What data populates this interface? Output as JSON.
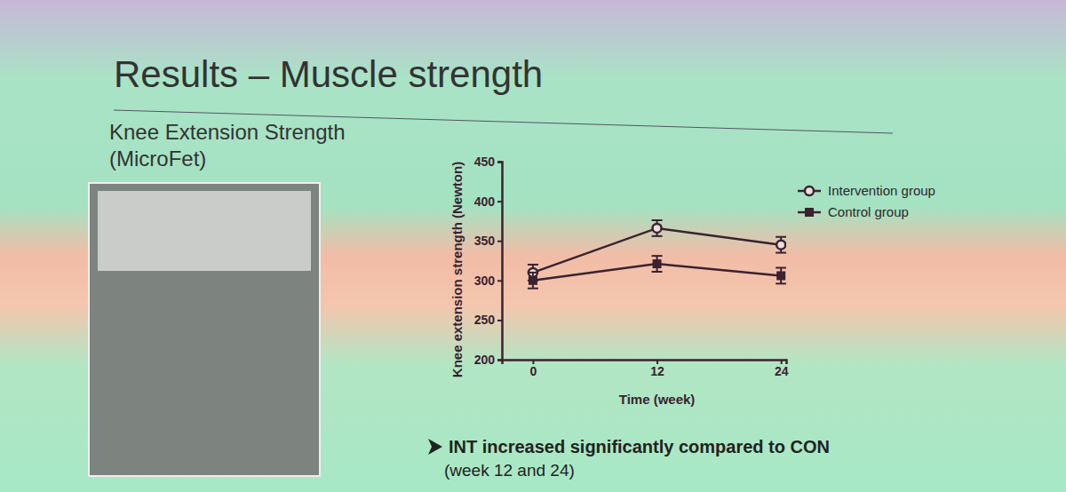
{
  "chart_data": {
    "type": "line",
    "title": "Results – Muscle strength",
    "subtitle": "Knee Extension Strength (MicroFet)",
    "annotations": [
      "INT increased significantly compared to CON",
      "(week 12 and 24)"
    ],
    "x_label": "Time (week)",
    "y_label": "Knee extension strength (Newton)",
    "x": [
      0,
      12,
      24
    ],
    "xlim": [
      -3,
      24.5
    ],
    "xticks": [
      0,
      12,
      24
    ],
    "ylim": [
      200,
      450
    ],
    "yticks": [
      200,
      250,
      300,
      350,
      400,
      450
    ],
    "grid": false,
    "legend": "right",
    "series": [
      {
        "name": "Intervention group",
        "color": "#3a2230",
        "marker": "circle",
        "line_style": "solid",
        "values": [
          310,
          366,
          345
        ],
        "errors": [
          10,
          10,
          10
        ]
      },
      {
        "name": "Control group",
        "color": "#3a2230",
        "marker": "square",
        "line_style": "solid",
        "values": [
          300,
          321,
          306
        ],
        "errors": [
          10,
          10,
          10
        ]
      }
    ]
  }
}
